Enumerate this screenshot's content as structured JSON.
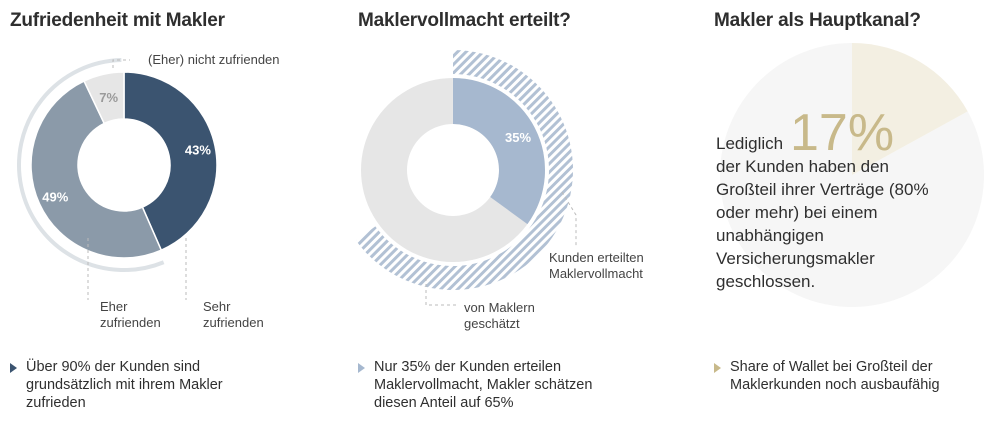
{
  "colors": {
    "dark_blue": "#3b5470",
    "mid_blue": "#8b9aa9",
    "light_gray": "#e6e6e6",
    "pale_blue": "#a6b8cf",
    "stripe": "#b2c1d4",
    "ring": "#dde2e6",
    "gold": "#c8b98a",
    "cream": "#f3efe2",
    "faint": "#f6f6f6"
  },
  "panel1": {
    "title": "Zufriedenheit mit Makler",
    "label_nicht": "(Eher) nicht zufrienden",
    "label_eher": "Eher\nzufrienden",
    "label_sehr": "Sehr\nzufrienden",
    "bullet_icon": "triangle-right-icon",
    "bullet": "Über 90% der Kunden sind grundsätzlich mit ihrem Makler zufrieden"
  },
  "panel2": {
    "title": "Maklervollmacht erteilt?",
    "label_kunden": "Kunden erteilten\nMaklervollmacht",
    "label_makler": "von Maklern\ngeschätzt",
    "bullet_icon": "triangle-right-icon",
    "bullet": "Nur 35% der Kunden erteilen Maklervollmacht, Makler schätzen diesen Anteil auf 65%"
  },
  "panel3": {
    "title": "Makler als Hauptkanal?",
    "big_value": "17%",
    "text": "Lediglich\nder Kunden haben den Großteil ihrer Verträge (80% oder mehr) bei einem unabhängigen Versicherungsmakler geschlossen.",
    "bullet_icon": "triangle-right-icon",
    "bullet": "Share of Wallet bei Großteil der Maklerkunden noch ausbaufähig"
  },
  "chart_data": [
    {
      "type": "pie",
      "title": "Zufriedenheit mit Makler",
      "categories": [
        "Sehr zufrienden",
        "Eher zufrienden",
        "(Eher) nicht zufrienden"
      ],
      "values": [
        43,
        49,
        7
      ],
      "labels": [
        "43%",
        "49%",
        "7%"
      ]
    },
    {
      "type": "pie",
      "title": "Maklervollmacht erteilt?",
      "categories": [
        "Kunden erteilten Maklervollmacht",
        "von Maklern geschätzt"
      ],
      "values": [
        35,
        65
      ],
      "labels": [
        "35%",
        ""
      ]
    },
    {
      "type": "pie",
      "title": "Makler als Hauptkanal?",
      "values": [
        17,
        83
      ],
      "labels": [
        "17%",
        ""
      ]
    }
  ]
}
